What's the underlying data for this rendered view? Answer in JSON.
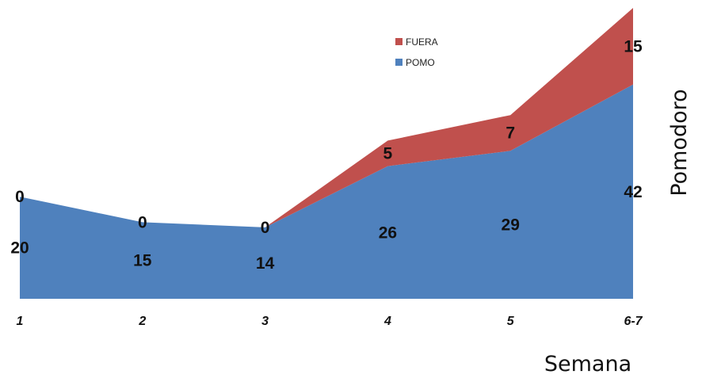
{
  "chart_data": {
    "type": "area",
    "stacked": true,
    "categories": [
      "1",
      "2",
      "3",
      "4",
      "5",
      "6-7"
    ],
    "series": [
      {
        "name": "POMO",
        "values": [
          20,
          15,
          14,
          26,
          29,
          42
        ],
        "color": "#4f81bd"
      },
      {
        "name": "FUERA",
        "values": [
          0,
          0,
          0,
          5,
          7,
          15
        ],
        "color": "#c0504d"
      }
    ],
    "xlabel": "Semana",
    "ylabel": "Pomodoro",
    "ylim": [
      0,
      57
    ],
    "grid": false,
    "legend_position": "top-center",
    "legend_order": [
      "FUERA",
      "POMO"
    ]
  }
}
